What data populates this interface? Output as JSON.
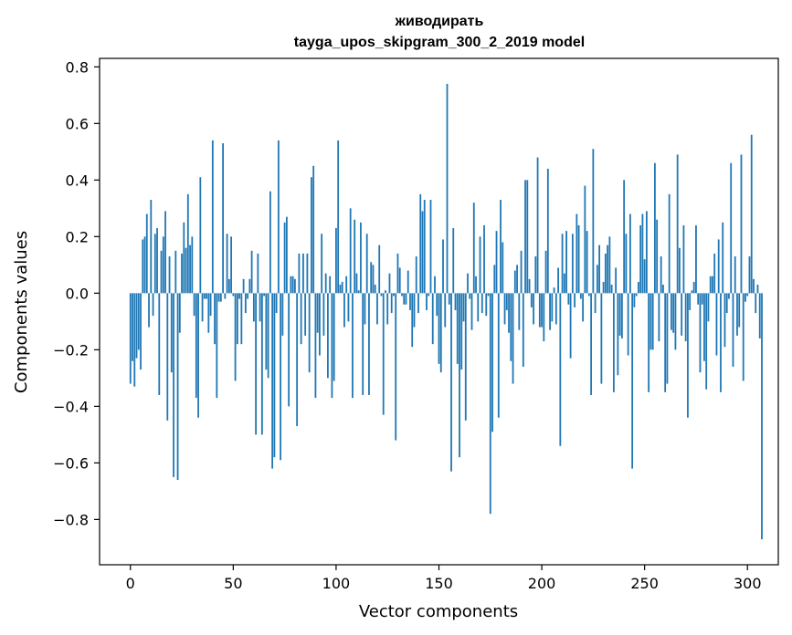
{
  "chart_data": {
    "type": "bar",
    "title": "живодирать",
    "subtitle": "tayga_upos_skipgram_300_2_2019 model",
    "xlabel": "Vector components",
    "ylabel": "Components values",
    "xlim": [
      -15,
      315
    ],
    "ylim": [
      -0.96,
      0.83
    ],
    "xticks": [
      0,
      50,
      100,
      150,
      200,
      250,
      300
    ],
    "yticks": [
      -0.8,
      -0.6,
      -0.4,
      -0.2,
      0.0,
      0.2,
      0.4,
      0.6,
      0.8
    ],
    "ytick_labels": [
      "−0.8",
      "−0.6",
      "−0.4",
      "−0.2",
      "0.0",
      "0.2",
      "0.4",
      "0.6",
      "0.8"
    ],
    "bar_color": "#1f77b4",
    "grid": false,
    "values": [
      -0.32,
      -0.24,
      -0.33,
      -0.23,
      -0.2,
      -0.27,
      0.19,
      0.2,
      0.28,
      -0.12,
      0.33,
      -0.08,
      0.21,
      0.23,
      -0.36,
      0.15,
      0.2,
      0.29,
      -0.45,
      0.13,
      -0.28,
      -0.65,
      0.15,
      -0.66,
      -0.14,
      0.14,
      0.25,
      0.16,
      0.35,
      0.17,
      0.2,
      -0.08,
      -0.37,
      -0.44,
      0.41,
      -0.1,
      -0.02,
      -0.02,
      -0.14,
      -0.08,
      0.54,
      -0.18,
      -0.37,
      -0.03,
      -0.03,
      0.53,
      -0.02,
      0.21,
      0.05,
      0.2,
      -0.01,
      -0.31,
      -0.18,
      -0.02,
      -0.18,
      0.05,
      -0.07,
      -0.02,
      0.05,
      0.15,
      -0.1,
      -0.5,
      0.14,
      -0.1,
      -0.5,
      -0.01,
      -0.27,
      -0.3,
      0.36,
      -0.62,
      -0.58,
      -0.07,
      0.54,
      -0.59,
      -0.15,
      0.25,
      0.27,
      -0.4,
      0.06,
      0.06,
      0.05,
      -0.47,
      0.14,
      -0.18,
      0.14,
      -0.15,
      0.14,
      -0.28,
      0.41,
      0.45,
      -0.37,
      -0.14,
      -0.22,
      0.21,
      -0.15,
      0.07,
      -0.3,
      0.06,
      -0.37,
      -0.31,
      0.23,
      0.54,
      0.03,
      0.04,
      -0.12,
      0.06,
      -0.1,
      0.3,
      -0.37,
      0.26,
      0.07,
      0.01,
      0.25,
      -0.36,
      -0.11,
      0.21,
      -0.36,
      0.11,
      0.1,
      0.03,
      -0.11,
      0.17,
      -0.01,
      -0.43,
      0.01,
      -0.11,
      0.07,
      -0.07,
      -0.01,
      -0.52,
      0.14,
      0.09,
      -0.01,
      -0.04,
      -0.04,
      0.08,
      -0.06,
      -0.19,
      -0.12,
      0.13,
      -0.07,
      0.35,
      0.29,
      0.33,
      -0.06,
      -0.01,
      0.33,
      -0.18,
      0.06,
      -0.08,
      -0.25,
      -0.28,
      0.19,
      -0.12,
      0.74,
      -0.04,
      -0.63,
      0.23,
      -0.06,
      -0.25,
      -0.58,
      -0.27,
      -0.1,
      -0.45,
      0.07,
      -0.02,
      -0.13,
      0.32,
      0.06,
      -0.1,
      0.2,
      -0.07,
      0.24,
      -0.08,
      -0.01,
      -0.78,
      -0.49,
      0.1,
      0.22,
      -0.44,
      0.33,
      0.18,
      -0.11,
      -0.06,
      -0.14,
      -0.24,
      -0.32,
      0.08,
      0.1,
      -0.13,
      0.15,
      -0.26,
      0.4,
      0.4,
      0.05,
      -0.05,
      -0.11,
      0.13,
      0.48,
      -0.12,
      -0.12,
      -0.17,
      0.15,
      0.44,
      -0.13,
      -0.1,
      0.02,
      -0.11,
      0.09,
      -0.54,
      0.21,
      0.07,
      0.22,
      -0.04,
      -0.23,
      0.21,
      -0.05,
      0.28,
      0.24,
      -0.02,
      -0.1,
      0.38,
      0.22,
      -0.01,
      -0.36,
      0.51,
      -0.07,
      0.1,
      0.17,
      -0.32,
      0.04,
      0.14,
      0.17,
      0.2,
      0.03,
      -0.35,
      0.09,
      -0.29,
      -0.15,
      -0.16,
      0.4,
      0.21,
      -0.22,
      0.28,
      -0.62,
      -0.05,
      -0.01,
      0.04,
      0.24,
      0.28,
      0.12,
      0.29,
      -0.35,
      -0.2,
      -0.2,
      0.46,
      0.26,
      -0.17,
      0.13,
      0.03,
      -0.35,
      -0.32,
      0.35,
      -0.13,
      -0.14,
      -0.2,
      0.49,
      0.16,
      -0.15,
      0.24,
      -0.17,
      -0.44,
      -0.06,
      0.01,
      0.04,
      0.24,
      -0.04,
      -0.28,
      -0.04,
      -0.24,
      -0.34,
      -0.1,
      0.06,
      0.06,
      0.14,
      -0.22,
      0.19,
      -0.35,
      0.25,
      -0.19,
      -0.07,
      -0.02,
      0.46,
      -0.26,
      0.13,
      -0.15,
      -0.12,
      0.49,
      -0.31,
      -0.03,
      -0.01,
      0.13,
      0.56,
      0.05,
      -0.07,
      0.03,
      -0.16,
      -0.87
    ]
  }
}
